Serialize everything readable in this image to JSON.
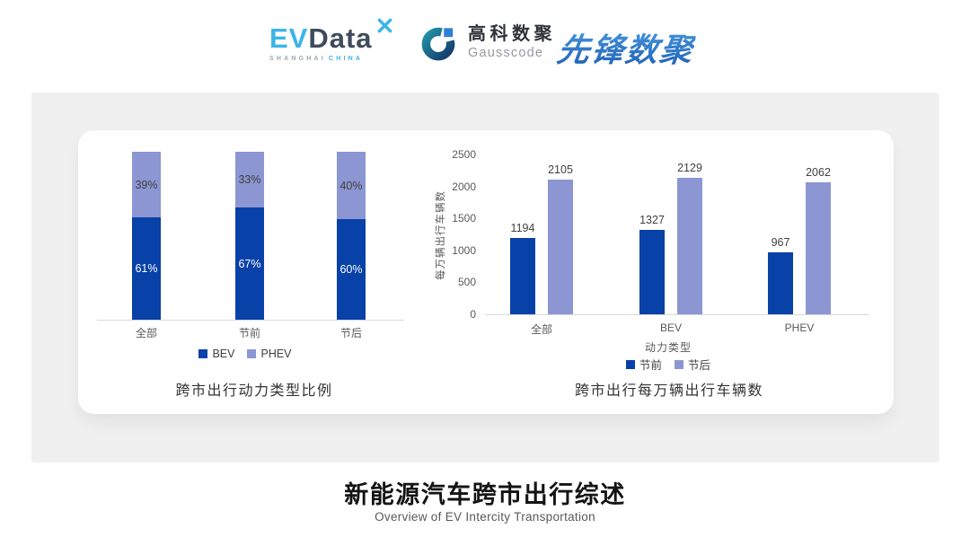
{
  "header": {
    "evdata": {
      "ev": "EV",
      "data": "Data",
      "sub1": "SHANGHAI",
      "sub2": "CHINA"
    },
    "gausscode": {
      "cn": "高科数聚",
      "en": "Gausscode"
    },
    "pioneer": "先锋数聚"
  },
  "footer": {
    "title": "新能源汽车跨市出行综述",
    "subtitle": "Overview of EV Intercity Transportation"
  },
  "colors": {
    "bar_dark_blue": "#0841a8",
    "bar_light_periwinkle": "#8c96d2",
    "axis_text": "#595959",
    "value_text": "#3f3f3f"
  },
  "chart_data": [
    {
      "type": "bar",
      "subtype": "stacked-100-percent",
      "title": "跨市出行动力类型比例",
      "categories": [
        "全部",
        "节前",
        "节后"
      ],
      "series": [
        {
          "name": "BEV",
          "color": "#0841a8",
          "values": [
            61,
            67,
            60
          ]
        },
        {
          "name": "PHEV",
          "color": "#8c96d2",
          "values": [
            39,
            33,
            40
          ]
        }
      ],
      "value_suffix": "%",
      "ylim": [
        0,
        100
      ],
      "grid": false,
      "legend_position": "bottom"
    },
    {
      "type": "bar",
      "subtype": "grouped",
      "title": "跨市出行每万辆出行车辆数",
      "categories": [
        "全部",
        "BEV",
        "PHEV"
      ],
      "xlabel": "动力类型",
      "ylabel": "每万辆出行车辆数",
      "ylim": [
        0,
        2500
      ],
      "yticks": [
        0,
        500,
        1000,
        1500,
        2000,
        2500
      ],
      "series": [
        {
          "name": "节前",
          "color": "#0841a8",
          "values": [
            1194,
            1327,
            967
          ]
        },
        {
          "name": "节后",
          "color": "#8c96d2",
          "values": [
            2105,
            2129,
            2062
          ]
        }
      ],
      "grid": false,
      "legend_position": "bottom"
    }
  ]
}
